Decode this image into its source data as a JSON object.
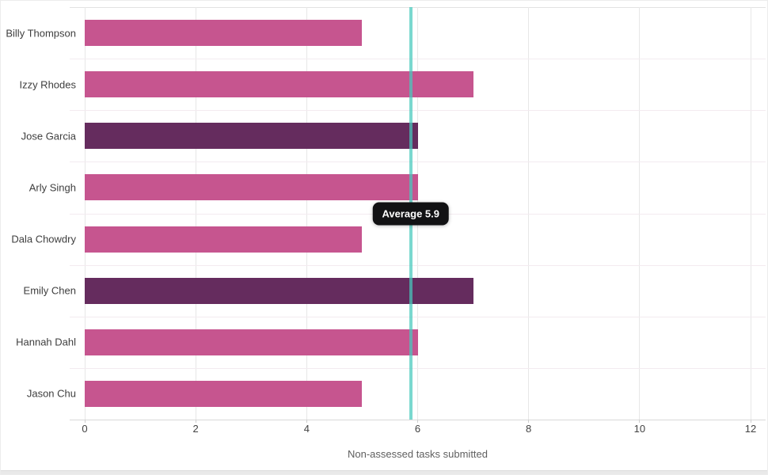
{
  "chart_data": {
    "type": "bar",
    "orientation": "horizontal",
    "title": "",
    "xlabel": "Non-assessed tasks submitted",
    "ylabel": "",
    "categories": [
      "Billy Thompson",
      "Izzy Rhodes",
      "Jose Garcia",
      "Arly Singh",
      "Dala Chowdry",
      "Emily Chen",
      "Hannah Dahl",
      "Jason Chu"
    ],
    "values": [
      5,
      7,
      6,
      6,
      5,
      7,
      6,
      5
    ],
    "bar_colors": [
      "#c6558f",
      "#c6558f",
      "#652c5e",
      "#c6558f",
      "#c6558f",
      "#652c5e",
      "#c6558f",
      "#c6558f"
    ],
    "x_ticks": [
      0,
      2,
      4,
      6,
      8,
      10,
      12
    ],
    "xlim": [
      0,
      12
    ],
    "grid": true,
    "average_line": {
      "label": "Average 5.9",
      "value": 5.9,
      "color": "#46c9bd"
    }
  },
  "colors": {
    "bar_pink": "#c6558f",
    "bar_dark_purple": "#652c5e",
    "average_line_teal": "#46c9bd",
    "tooltip_background": "#121214",
    "tooltip_text": "#ffffff",
    "gridline": "#e7e7e7",
    "band_separator": "#f3ebf0",
    "axis_text": "#424242",
    "label_text": "#3e3e3e"
  }
}
